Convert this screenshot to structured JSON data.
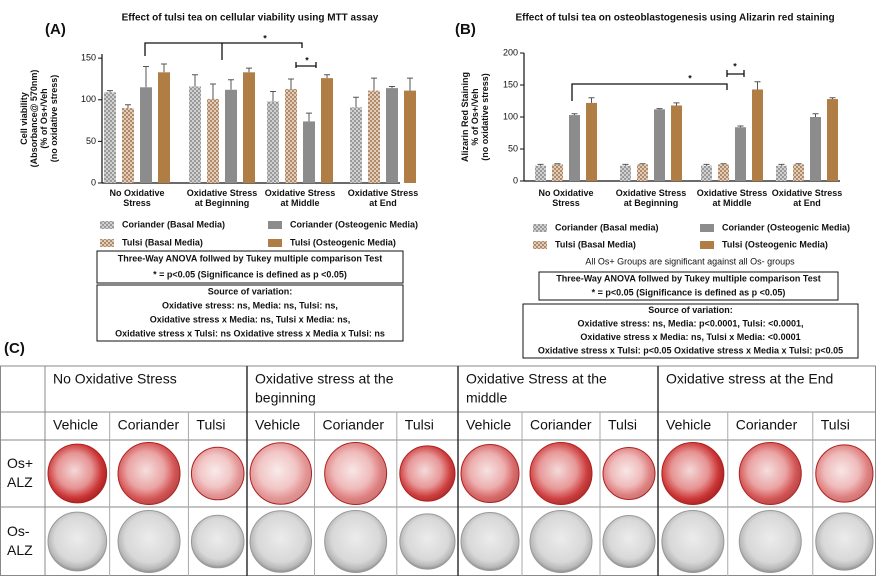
{
  "chart_data": [
    {
      "type": "bar",
      "panel": "(A)",
      "title": "Effect of tulsi tea on cellular viability using MTT assay",
      "ylabel": [
        "Cell viability",
        "(Absorbance@ 570nm)",
        "(% of Os+/Veh",
        "(no oxidative stress)"
      ],
      "categories": [
        [
          "No Oxidative",
          "Stress"
        ],
        [
          "Oxidative Stress",
          "at Beginning"
        ],
        [
          "Oxidative Stress",
          "at Middle"
        ],
        [
          "Oxidative Stress",
          "at End"
        ]
      ],
      "series": [
        {
          "name": "Coriander (Basal Media)",
          "color": "#9a9a9a",
          "pattern": "checkered",
          "values": [
            109,
            116,
            98,
            91
          ],
          "errors": [
            2,
            14,
            12,
            12
          ]
        },
        {
          "name": "Tulsi (Basal Media)",
          "color": "#b08a6a",
          "pattern": "checkered",
          "values": [
            90,
            101,
            113,
            111
          ],
          "errors": [
            4,
            18,
            12,
            15
          ]
        },
        {
          "name": "Coriander (Osteogenic Media)",
          "color": "#8c8c8c",
          "values": [
            115,
            112,
            74,
            114
          ],
          "errors": [
            25,
            12,
            10,
            2
          ]
        },
        {
          "name": "Tulsi (Osteogenic Media)",
          "color": "#b07d45",
          "values": [
            133,
            133,
            126,
            111
          ],
          "errors": [
            10,
            5,
            4,
            15
          ]
        }
      ],
      "ylim": [
        0,
        155
      ],
      "yticks": [
        0,
        50,
        100,
        150
      ],
      "annotations": [
        "*",
        "*"
      ],
      "stats": [
        "Three-Way ANOVA follwed by Tukey multiple comparison Test",
        "* = p<0.05 (Significance is defined as p <0.05)"
      ],
      "source": [
        "Source of variation:",
        "Oxidative stress: ns, Media: ns, Tulsi: ns,",
        "Oxidative stress x Media: ns, Tulsi x Media: ns,",
        "Oxidative stress x Tulsi: ns Oxidative stress x Media x Tulsi: ns"
      ]
    },
    {
      "type": "bar",
      "panel": "(B)",
      "title": "Effect of tulsi tea on osteoblastogenesis using Alizarin red staining",
      "ylabel": [
        "Alizarin Red Staining",
        "% of Os+/Veh",
        "(no oxidative stress)"
      ],
      "categories": [
        [
          "No Oxidative",
          "Stress"
        ],
        [
          "Oxidative Stress",
          "at Beginning"
        ],
        [
          "Oxidative Stress",
          "at Middle"
        ],
        [
          "Oxidative Stress",
          "at End"
        ]
      ],
      "series": [
        {
          "name": "Coriander (Basal media)",
          "color": "#9a9a9a",
          "pattern": "checkered",
          "values": [
            24,
            24,
            24,
            24
          ],
          "errors": [
            2,
            2,
            2,
            2
          ]
        },
        {
          "name": "Tulsi (Basal Media)",
          "color": "#b08a6a",
          "pattern": "checkered",
          "values": [
            26,
            26,
            26,
            26
          ],
          "errors": [
            1,
            1,
            1,
            1
          ]
        },
        {
          "name": "Coriander (Osteogenic Media)",
          "color": "#8c8c8c",
          "values": [
            103,
            112,
            84,
            100
          ],
          "errors": [
            2,
            1,
            2,
            5
          ]
        },
        {
          "name": "Tulsi (Osteogenic Media)",
          "color": "#b07d45",
          "values": [
            122,
            118,
            143,
            128
          ],
          "errors": [
            8,
            4,
            12,
            2
          ]
        }
      ],
      "ylim": [
        0,
        200
      ],
      "yticks": [
        0,
        50,
        100,
        150,
        200
      ],
      "annotations": [
        "*",
        "*"
      ],
      "note": "All Os+ Groups are significant against all Os- groups",
      "stats": [
        "Three-Way ANOVA follwed by Tukey multiple comparison Test",
        "* = p<0.05 (Significance is defined as p <0.05)"
      ],
      "source": [
        "Source of variation:",
        "Oxidative stress: ns, Media: p<0.0001, Tulsi: <0.0001,",
        "Oxidative stress x Media: ns, Tulsi x Media: <0.0001",
        "Oxidative stress x Tulsi: p<0.05 Oxidative stress x Media x Tulsi: p<0.05"
      ]
    }
  ],
  "panel_c": {
    "panel": "(C)",
    "groups": [
      [
        "No Oxidative Stress"
      ],
      [
        "Oxidative stress at the",
        "beginning"
      ],
      [
        "Oxidative Stress at the",
        "middle"
      ],
      [
        "Oxidative stress at the End"
      ]
    ],
    "columns": [
      "Vehicle",
      "Coriander",
      "Tulsi"
    ],
    "rows": [
      [
        "Os+",
        "ALZ"
      ],
      [
        "Os-",
        "ALZ"
      ]
    ]
  }
}
